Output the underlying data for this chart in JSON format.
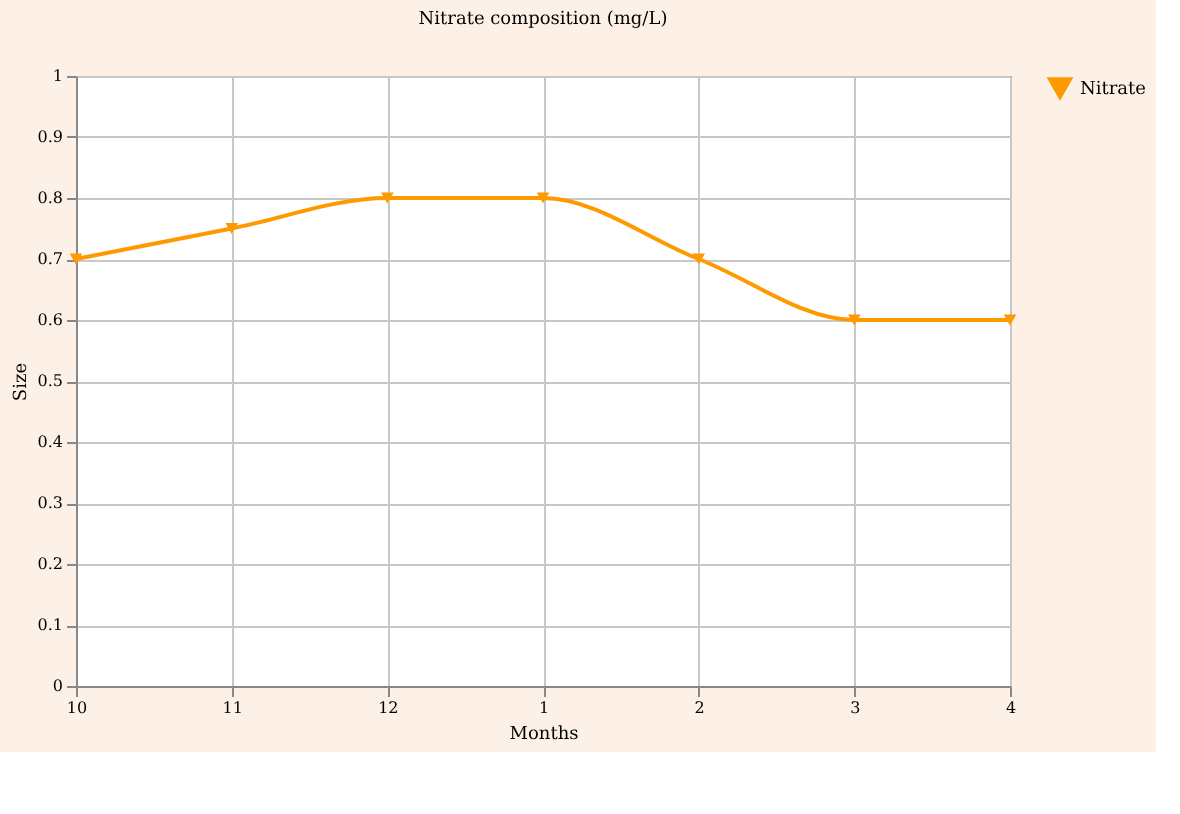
{
  "chart_data": {
    "type": "line",
    "title": "Nitrate composition (mg/L)",
    "xlabel": "Months",
    "ylabel": "Size",
    "categories": [
      "10",
      "11",
      "12",
      "1",
      "2",
      "3",
      "4"
    ],
    "series": [
      {
        "name": "Nitrate",
        "color": "#ff9900",
        "values": [
          0.7,
          0.75,
          0.8,
          0.8,
          0.7,
          0.6,
          0.6
        ]
      }
    ],
    "ylim": [
      0,
      1
    ],
    "yticks": [
      0,
      0.1,
      0.2,
      0.3,
      0.4,
      0.5,
      0.6,
      0.7,
      0.8,
      0.9,
      1
    ],
    "grid": true,
    "legend": "right",
    "marker": "triangle",
    "line_style": "solid"
  }
}
